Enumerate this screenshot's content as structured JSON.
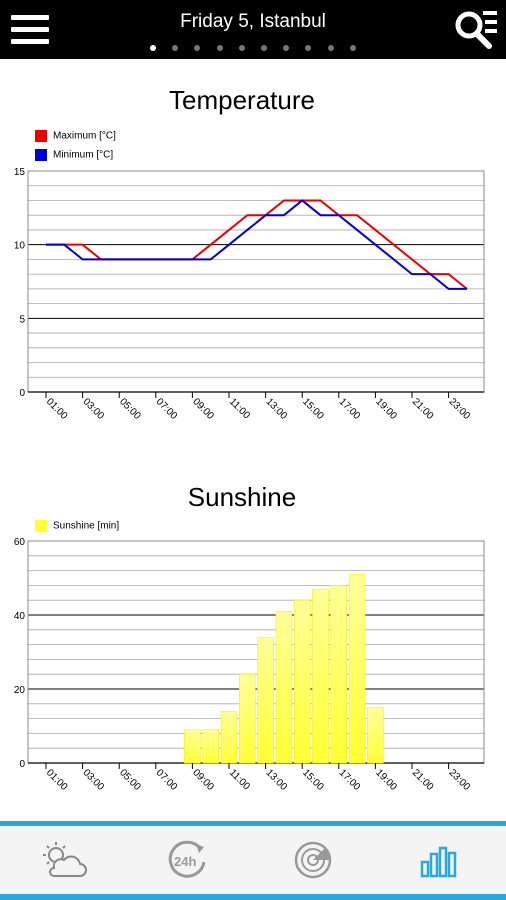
{
  "header": {
    "title": "Friday 5, Istanbul",
    "page_count": 10,
    "active_page": 0,
    "menu_icon": "hamburger-menu-icon",
    "search_icon": "search-list-icon"
  },
  "colors": {
    "accent": "#29a8dd",
    "topbar": "#000000",
    "max_series": "#ee0000",
    "min_series": "#0000dd",
    "sunshine_bar": "#ffff33"
  },
  "charts": {
    "temperature": {
      "title": "Temperature",
      "legend": [
        "Maximum [°C]",
        "Minimum [°C]"
      ],
      "y_ticks": [
        "0",
        "5",
        "10",
        "15"
      ],
      "x_ticks": [
        "01:00",
        "03:00",
        "05:00",
        "07:00",
        "09:00",
        "11:00",
        "13:00",
        "15:00",
        "17:00",
        "19:00",
        "21:00",
        "23:00"
      ]
    },
    "sunshine": {
      "title": "Sunshine",
      "legend": [
        "Sunshine [min]"
      ],
      "y_ticks": [
        "0",
        "20",
        "40",
        "60"
      ],
      "x_ticks": [
        "01:00",
        "03:00",
        "05:00",
        "07:00",
        "09:00",
        "11:00",
        "13:00",
        "15:00",
        "17:00",
        "19:00",
        "21:00",
        "23:00"
      ]
    }
  },
  "chart_data": [
    {
      "type": "line",
      "title": "Temperature",
      "x": [
        "01:00",
        "02:00",
        "03:00",
        "04:00",
        "05:00",
        "06:00",
        "07:00",
        "08:00",
        "09:00",
        "10:00",
        "11:00",
        "12:00",
        "13:00",
        "14:00",
        "15:00",
        "16:00",
        "17:00",
        "18:00",
        "19:00",
        "20:00",
        "21:00",
        "22:00",
        "23:00",
        "24:00"
      ],
      "series": [
        {
          "name": "Maximum [°C]",
          "color": "#ee0000",
          "values": [
            10,
            10,
            10,
            9,
            9,
            9,
            9,
            9,
            9,
            10,
            11,
            12,
            12,
            13,
            13,
            13,
            12,
            12,
            11,
            10,
            9,
            8,
            8,
            7
          ]
        },
        {
          "name": "Minimum [°C]",
          "color": "#0000dd",
          "values": [
            10,
            10,
            9,
            9,
            9,
            9,
            9,
            9,
            9,
            9,
            10,
            11,
            12,
            12,
            13,
            12,
            12,
            11,
            10,
            9,
            8,
            8,
            7,
            7
          ]
        }
      ],
      "ylim": [
        0,
        15
      ],
      "y_major_step": 5,
      "y_minor_step": 1,
      "grid": true,
      "legend_position": "top-left"
    },
    {
      "type": "bar",
      "title": "Sunshine",
      "categories": [
        "01:00",
        "02:00",
        "03:00",
        "04:00",
        "05:00",
        "06:00",
        "07:00",
        "08:00",
        "09:00",
        "10:00",
        "11:00",
        "12:00",
        "13:00",
        "14:00",
        "15:00",
        "16:00",
        "17:00",
        "18:00",
        "19:00",
        "20:00",
        "21:00",
        "22:00",
        "23:00",
        "24:00"
      ],
      "series": [
        {
          "name": "Sunshine [min]",
          "color": "#ffff33",
          "values": [
            0,
            0,
            0,
            0,
            0,
            0,
            0,
            0,
            9,
            9,
            14,
            24,
            34,
            41,
            44,
            47,
            48,
            51,
            15,
            0,
            0,
            0,
            0,
            0
          ]
        }
      ],
      "ylim": [
        0,
        60
      ],
      "y_major_step": 20,
      "y_minor_step": 4,
      "grid": true,
      "legend_position": "top-left"
    }
  ],
  "bottom_nav": {
    "items": [
      {
        "icon": "weather-today-icon",
        "active": false
      },
      {
        "icon": "24h-forecast-icon",
        "active": false
      },
      {
        "icon": "radar-icon",
        "active": false
      },
      {
        "icon": "charts-icon",
        "active": true
      }
    ]
  }
}
